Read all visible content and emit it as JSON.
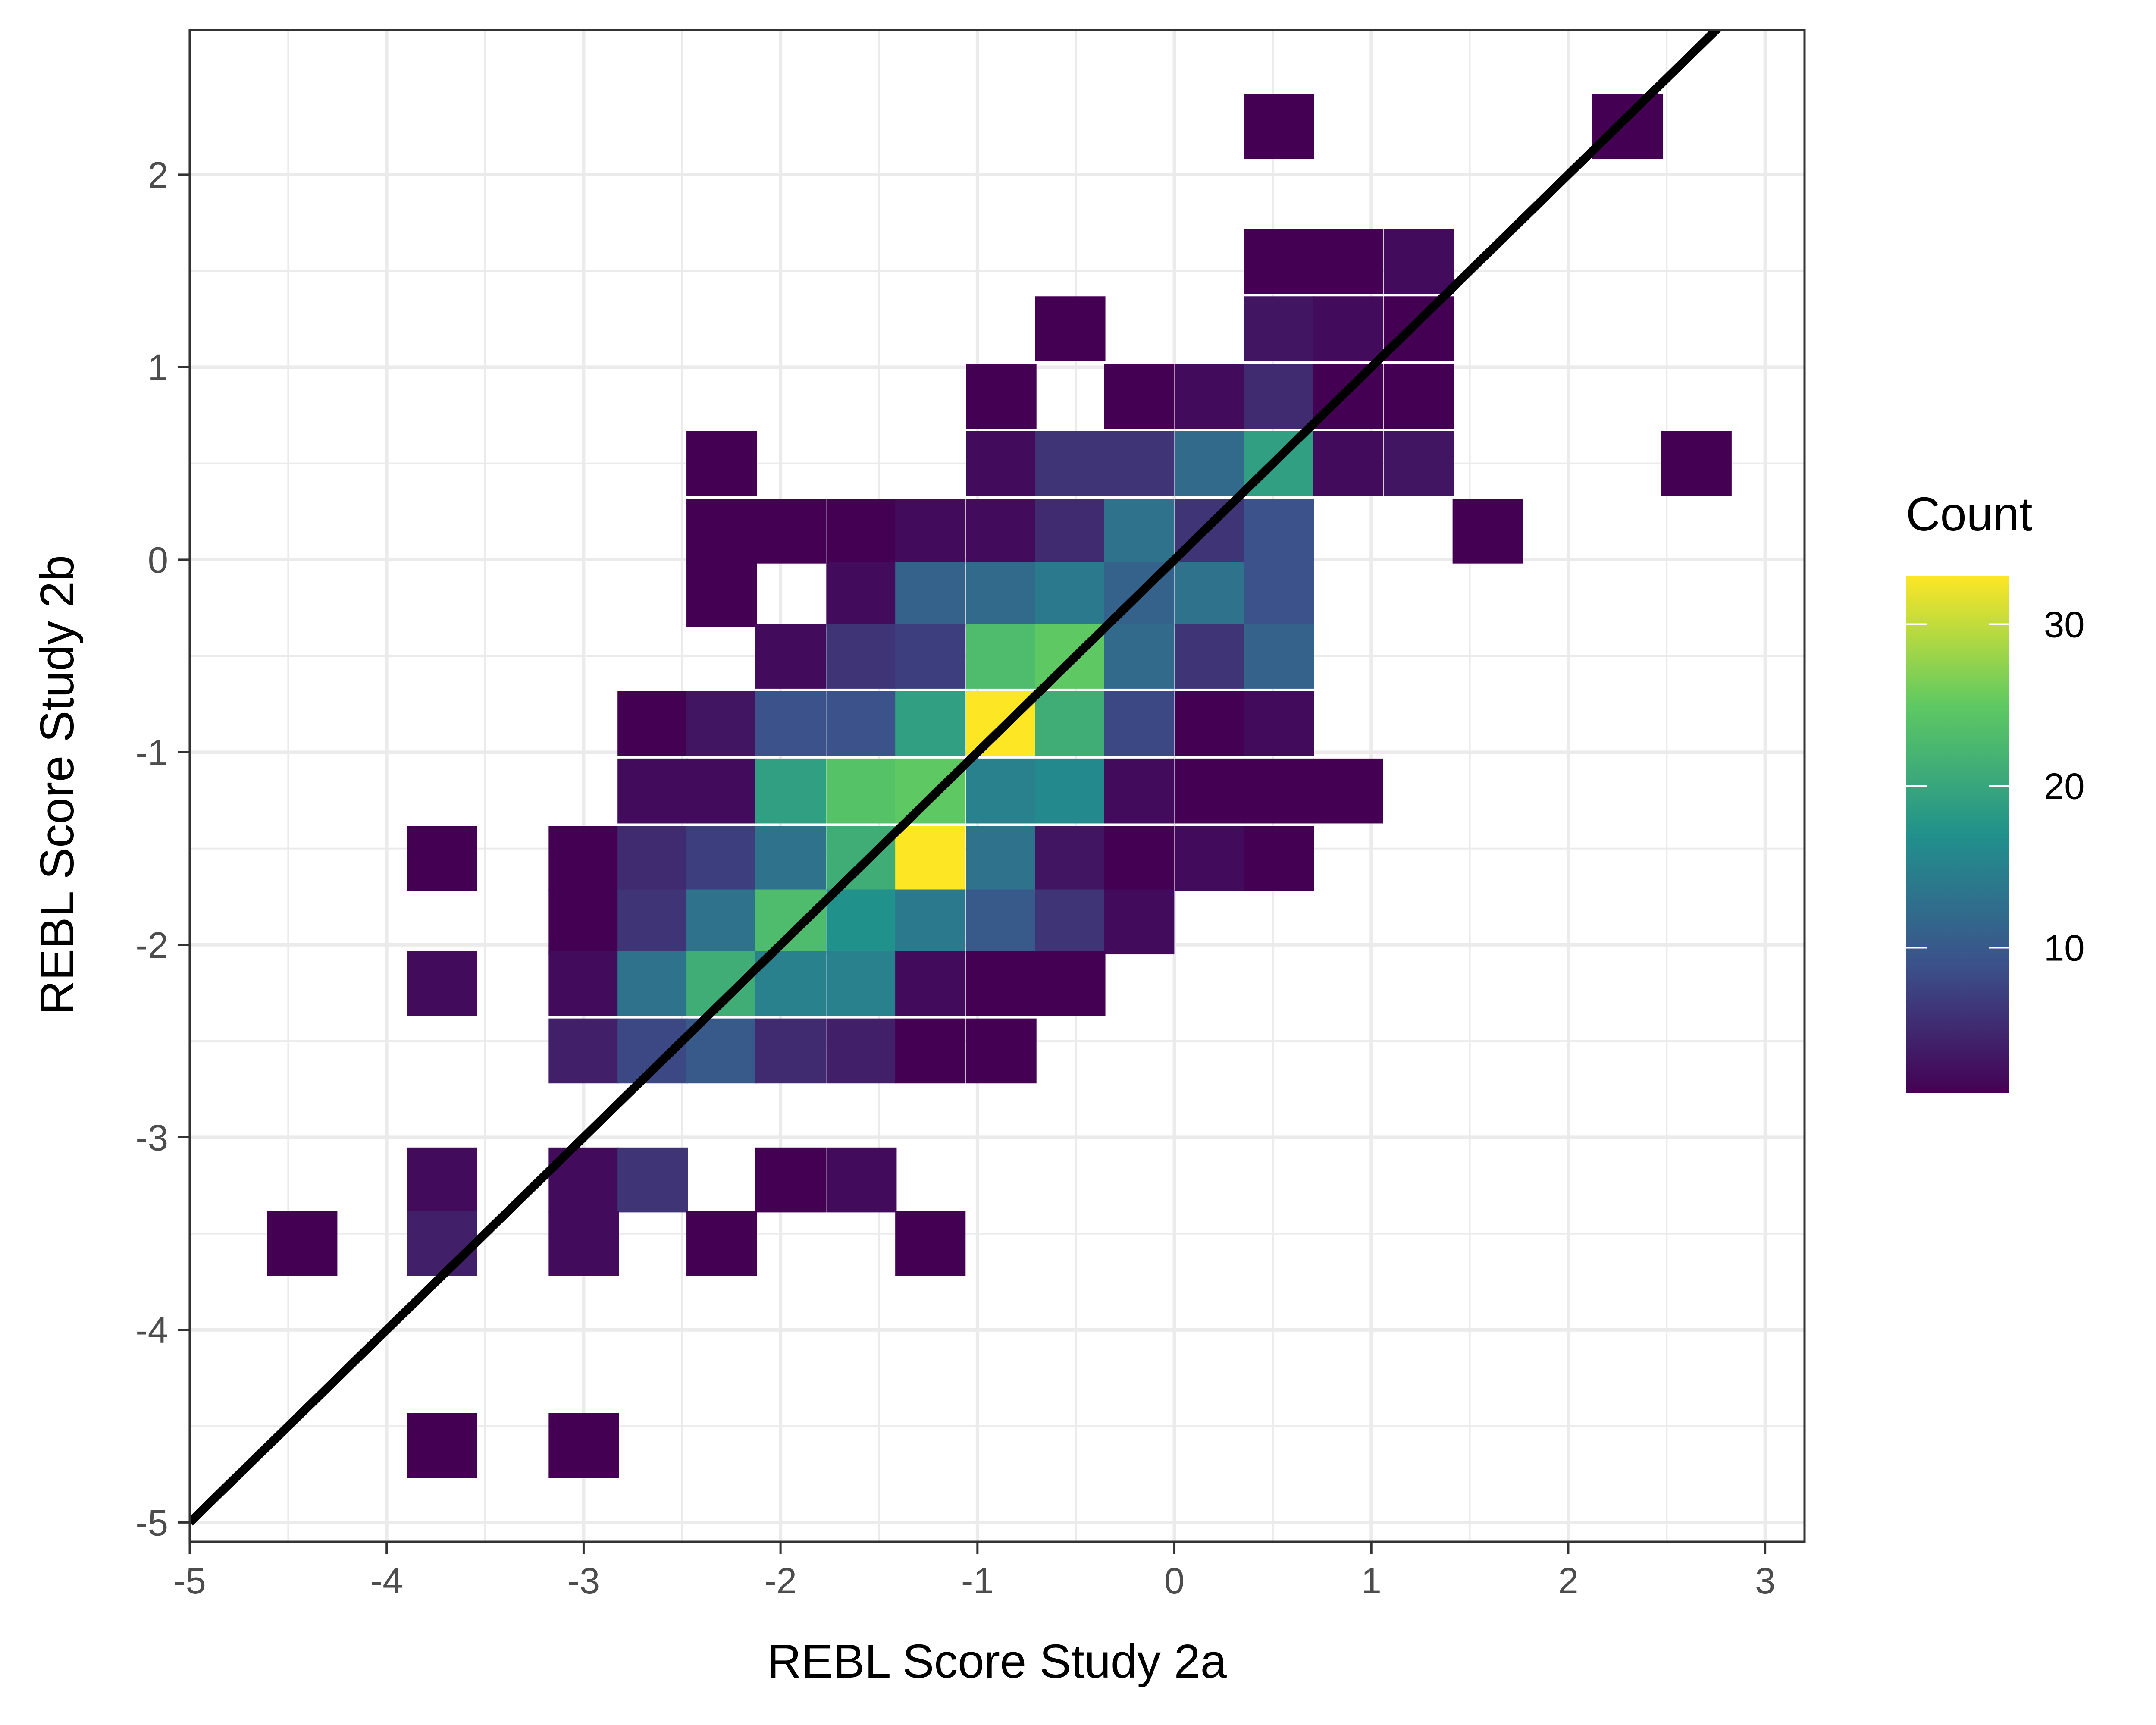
{
  "chart_data": {
    "type": "heatmap",
    "title": "",
    "xlabel": "REBL Score Study 2a",
    "ylabel": "REBL Score Study 2b",
    "xlim": [
      -5,
      3.2
    ],
    "ylim": [
      -5.1,
      2.75
    ],
    "bin_width": [
      0.355,
      0.335
    ],
    "x_ticks": [
      -5,
      -4,
      -3,
      -2,
      -1,
      0,
      1,
      2,
      3
    ],
    "x_tick_labels": [
      "-5",
      "-4",
      "-3",
      "-2",
      "-1",
      "0",
      "1",
      "2",
      "3"
    ],
    "y_ticks": [
      -5,
      -4,
      -3,
      -2,
      -1,
      0,
      1,
      2
    ],
    "y_tick_labels": [
      "-5",
      "-4",
      "-3",
      "-2",
      "-1",
      "0",
      "1",
      "2"
    ],
    "grid": true,
    "legend": {
      "title": "Count",
      "position": "right",
      "min": 1,
      "max": 33,
      "ticks": [
        10,
        20,
        30
      ],
      "tick_labels": [
        "10",
        "20",
        "30"
      ],
      "colorscale": [
        "#440154",
        "#3b528b",
        "#21918c",
        "#5ec962",
        "#fde725"
      ]
    },
    "reference_line": {
      "slope": 1,
      "intercept": 0,
      "color": "#000000"
    },
    "bins": [
      {
        "x": 0.53,
        "y": 2.25,
        "count": 1
      },
      {
        "x": 2.3,
        "y": 2.25,
        "count": 1
      },
      {
        "x": 0.53,
        "y": 1.55,
        "count": 1
      },
      {
        "x": 0.88,
        "y": 1.55,
        "count": 1
      },
      {
        "x": 1.24,
        "y": 1.55,
        "count": 2
      },
      {
        "x": -0.53,
        "y": 1.2,
        "count": 1
      },
      {
        "x": 0.53,
        "y": 1.2,
        "count": 3
      },
      {
        "x": 0.88,
        "y": 1.2,
        "count": 2
      },
      {
        "x": 1.24,
        "y": 1.2,
        "count": 1
      },
      {
        "x": -0.88,
        "y": 0.85,
        "count": 1
      },
      {
        "x": -0.18,
        "y": 0.85,
        "count": 1
      },
      {
        "x": 0.18,
        "y": 0.85,
        "count": 2
      },
      {
        "x": 0.53,
        "y": 0.85,
        "count": 5
      },
      {
        "x": 0.88,
        "y": 0.85,
        "count": 1
      },
      {
        "x": 1.24,
        "y": 0.85,
        "count": 1
      },
      {
        "x": -2.3,
        "y": 0.5,
        "count": 1
      },
      {
        "x": -0.88,
        "y": 0.5,
        "count": 2
      },
      {
        "x": -0.53,
        "y": 0.5,
        "count": 6
      },
      {
        "x": -0.18,
        "y": 0.5,
        "count": 6
      },
      {
        "x": 0.18,
        "y": 0.5,
        "count": 12
      },
      {
        "x": 0.53,
        "y": 0.5,
        "count": 19
      },
      {
        "x": 0.88,
        "y": 0.5,
        "count": 2
      },
      {
        "x": 1.24,
        "y": 0.5,
        "count": 3
      },
      {
        "x": 2.65,
        "y": 0.5,
        "count": 1
      },
      {
        "x": -2.3,
        "y": 0.15,
        "count": 1
      },
      {
        "x": -1.95,
        "y": 0.15,
        "count": 1
      },
      {
        "x": -1.59,
        "y": 0.15,
        "count": 1
      },
      {
        "x": -1.24,
        "y": 0.15,
        "count": 2
      },
      {
        "x": -0.88,
        "y": 0.15,
        "count": 2
      },
      {
        "x": -0.53,
        "y": 0.15,
        "count": 5
      },
      {
        "x": -0.18,
        "y": 0.15,
        "count": 13
      },
      {
        "x": 0.18,
        "y": 0.15,
        "count": 6
      },
      {
        "x": 0.53,
        "y": 0.15,
        "count": 9
      },
      {
        "x": 1.59,
        "y": 0.15,
        "count": 1
      },
      {
        "x": -2.3,
        "y": -0.18,
        "count": 1
      },
      {
        "x": -1.59,
        "y": -0.18,
        "count": 2
      },
      {
        "x": -1.24,
        "y": -0.18,
        "count": 11
      },
      {
        "x": -0.88,
        "y": -0.18,
        "count": 12
      },
      {
        "x": -0.53,
        "y": -0.18,
        "count": 14
      },
      {
        "x": -0.18,
        "y": -0.18,
        "count": 11
      },
      {
        "x": 0.18,
        "y": -0.18,
        "count": 13
      },
      {
        "x": 0.53,
        "y": -0.18,
        "count": 9
      },
      {
        "x": -1.95,
        "y": -0.5,
        "count": 2
      },
      {
        "x": -1.59,
        "y": -0.5,
        "count": 6
      },
      {
        "x": -1.24,
        "y": -0.5,
        "count": 7
      },
      {
        "x": -0.88,
        "y": -0.5,
        "count": 23
      },
      {
        "x": -0.53,
        "y": -0.5,
        "count": 25
      },
      {
        "x": -0.18,
        "y": -0.5,
        "count": 12
      },
      {
        "x": 0.18,
        "y": -0.5,
        "count": 6
      },
      {
        "x": 0.53,
        "y": -0.5,
        "count": 11
      },
      {
        "x": -2.65,
        "y": -0.85,
        "count": 1
      },
      {
        "x": -2.3,
        "y": -0.85,
        "count": 3
      },
      {
        "x": -1.95,
        "y": -0.85,
        "count": 9
      },
      {
        "x": -1.59,
        "y": -0.85,
        "count": 9
      },
      {
        "x": -1.24,
        "y": -0.85,
        "count": 19
      },
      {
        "x": -0.88,
        "y": -0.85,
        "count": 33
      },
      {
        "x": -0.53,
        "y": -0.85,
        "count": 21
      },
      {
        "x": -0.18,
        "y": -0.85,
        "count": 8
      },
      {
        "x": 0.18,
        "y": -0.85,
        "count": 1
      },
      {
        "x": 0.53,
        "y": -0.85,
        "count": 2
      },
      {
        "x": -2.65,
        "y": -1.2,
        "count": 2
      },
      {
        "x": -2.3,
        "y": -1.2,
        "count": 2
      },
      {
        "x": -1.95,
        "y": -1.2,
        "count": 19
      },
      {
        "x": -1.59,
        "y": -1.2,
        "count": 24
      },
      {
        "x": -1.24,
        "y": -1.2,
        "count": 25
      },
      {
        "x": -0.88,
        "y": -1.2,
        "count": 15
      },
      {
        "x": -0.53,
        "y": -1.2,
        "count": 16
      },
      {
        "x": -0.18,
        "y": -1.2,
        "count": 2
      },
      {
        "x": 0.18,
        "y": -1.2,
        "count": 1
      },
      {
        "x": 0.53,
        "y": -1.2,
        "count": 1
      },
      {
        "x": 0.88,
        "y": -1.2,
        "count": 1
      },
      {
        "x": -3.72,
        "y": -1.55,
        "count": 1
      },
      {
        "x": -3.0,
        "y": -1.55,
        "count": 1
      },
      {
        "x": -2.65,
        "y": -1.55,
        "count": 5
      },
      {
        "x": -2.3,
        "y": -1.55,
        "count": 7
      },
      {
        "x": -1.95,
        "y": -1.55,
        "count": 13
      },
      {
        "x": -1.59,
        "y": -1.55,
        "count": 21
      },
      {
        "x": -1.24,
        "y": -1.55,
        "count": 33
      },
      {
        "x": -0.88,
        "y": -1.55,
        "count": 13
      },
      {
        "x": -0.53,
        "y": -1.55,
        "count": 3
      },
      {
        "x": -0.18,
        "y": -1.55,
        "count": 1
      },
      {
        "x": 0.18,
        "y": -1.55,
        "count": 2
      },
      {
        "x": 0.53,
        "y": -1.55,
        "count": 1
      },
      {
        "x": -3.0,
        "y": -1.88,
        "count": 1
      },
      {
        "x": -2.65,
        "y": -1.88,
        "count": 6
      },
      {
        "x": -2.3,
        "y": -1.88,
        "count": 13
      },
      {
        "x": -1.95,
        "y": -1.88,
        "count": 23
      },
      {
        "x": -1.59,
        "y": -1.88,
        "count": 17
      },
      {
        "x": -1.24,
        "y": -1.88,
        "count": 14
      },
      {
        "x": -0.88,
        "y": -1.88,
        "count": 10
      },
      {
        "x": -0.53,
        "y": -1.88,
        "count": 6
      },
      {
        "x": -0.18,
        "y": -1.88,
        "count": 2
      },
      {
        "x": -3.72,
        "y": -2.2,
        "count": 2
      },
      {
        "x": -3.0,
        "y": -2.2,
        "count": 2
      },
      {
        "x": -2.65,
        "y": -2.2,
        "count": 13
      },
      {
        "x": -2.3,
        "y": -2.2,
        "count": 21
      },
      {
        "x": -1.95,
        "y": -2.2,
        "count": 15
      },
      {
        "x": -1.59,
        "y": -2.2,
        "count": 15
      },
      {
        "x": -1.24,
        "y": -2.2,
        "count": 2
      },
      {
        "x": -0.88,
        "y": -2.2,
        "count": 1
      },
      {
        "x": -0.53,
        "y": -2.2,
        "count": 1
      },
      {
        "x": -3.0,
        "y": -2.55,
        "count": 4
      },
      {
        "x": -2.65,
        "y": -2.55,
        "count": 8
      },
      {
        "x": -2.3,
        "y": -2.55,
        "count": 10
      },
      {
        "x": -1.95,
        "y": -2.55,
        "count": 5
      },
      {
        "x": -1.59,
        "y": -2.55,
        "count": 4
      },
      {
        "x": -1.24,
        "y": -2.55,
        "count": 1
      },
      {
        "x": -0.88,
        "y": -2.55,
        "count": 1
      },
      {
        "x": -3.72,
        "y": -3.22,
        "count": 2
      },
      {
        "x": -3.0,
        "y": -3.22,
        "count": 2
      },
      {
        "x": -2.65,
        "y": -3.22,
        "count": 6
      },
      {
        "x": -1.95,
        "y": -3.22,
        "count": 1
      },
      {
        "x": -1.59,
        "y": -3.22,
        "count": 2
      },
      {
        "x": -4.43,
        "y": -3.55,
        "count": 1
      },
      {
        "x": -3.72,
        "y": -3.55,
        "count": 4
      },
      {
        "x": -3.0,
        "y": -3.55,
        "count": 2
      },
      {
        "x": -2.3,
        "y": -3.55,
        "count": 1
      },
      {
        "x": -1.24,
        "y": -3.55,
        "count": 1
      },
      {
        "x": -3.72,
        "y": -4.6,
        "count": 1
      },
      {
        "x": -3.0,
        "y": -4.6,
        "count": 1
      }
    ]
  }
}
